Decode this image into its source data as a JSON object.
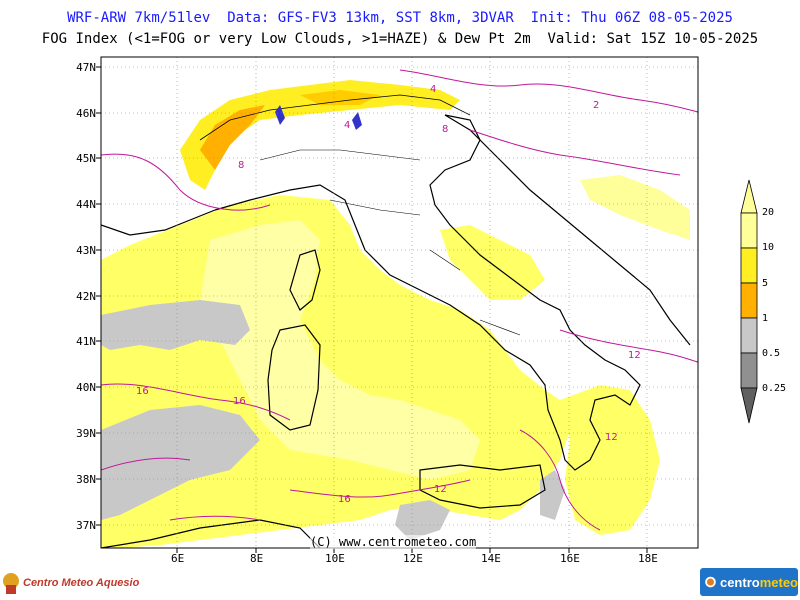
{
  "header": {
    "line1": "WRF-ARW 7km/51lev  Data: GFS-FV3 13km, SST 8km, 3DVAR  Init: Thu 06Z 08-05-2025",
    "line2": "FOG Index (<1=FOG or very Low Clouds, >1=HAZE) & Dew Pt 2m  Valid: Sat 15Z 10-05-2025"
  },
  "axes": {
    "lat_labels": [
      "47N",
      "46N",
      "45N",
      "44N",
      "43N",
      "42N",
      "41N",
      "40N",
      "39N",
      "38N",
      "37N"
    ],
    "lon_labels": [
      "6E",
      "8E",
      "10E",
      "12E",
      "14E",
      "16E",
      "18E"
    ]
  },
  "colorbar": {
    "labels": [
      "20",
      "10",
      "5",
      "1",
      "0.5",
      "0.25"
    ],
    "colors": [
      "#ffff99",
      "#ffee22",
      "#ffcc00",
      "#ffb000",
      "#ffffff",
      "#c8c8c8",
      "#909090"
    ]
  },
  "credit": "(C) www.centrometeo.com",
  "logos": {
    "left_text": "Centro Meteo Aquesio",
    "right_text_a": "centro",
    "right_text_b": "meteo"
  },
  "contour_labels": [
    "2",
    "4",
    "8",
    "8",
    "12",
    "12",
    "12",
    "16",
    "16",
    "16",
    "4"
  ],
  "colors": {
    "title_blue": "#1a1aff",
    "fog_yellow": "#ffff66",
    "fog_yellow_light": "#ffffa6",
    "haze_gray": "#c8c8c8",
    "contour_magenta": "#c0189a",
    "coast": "#000000"
  }
}
